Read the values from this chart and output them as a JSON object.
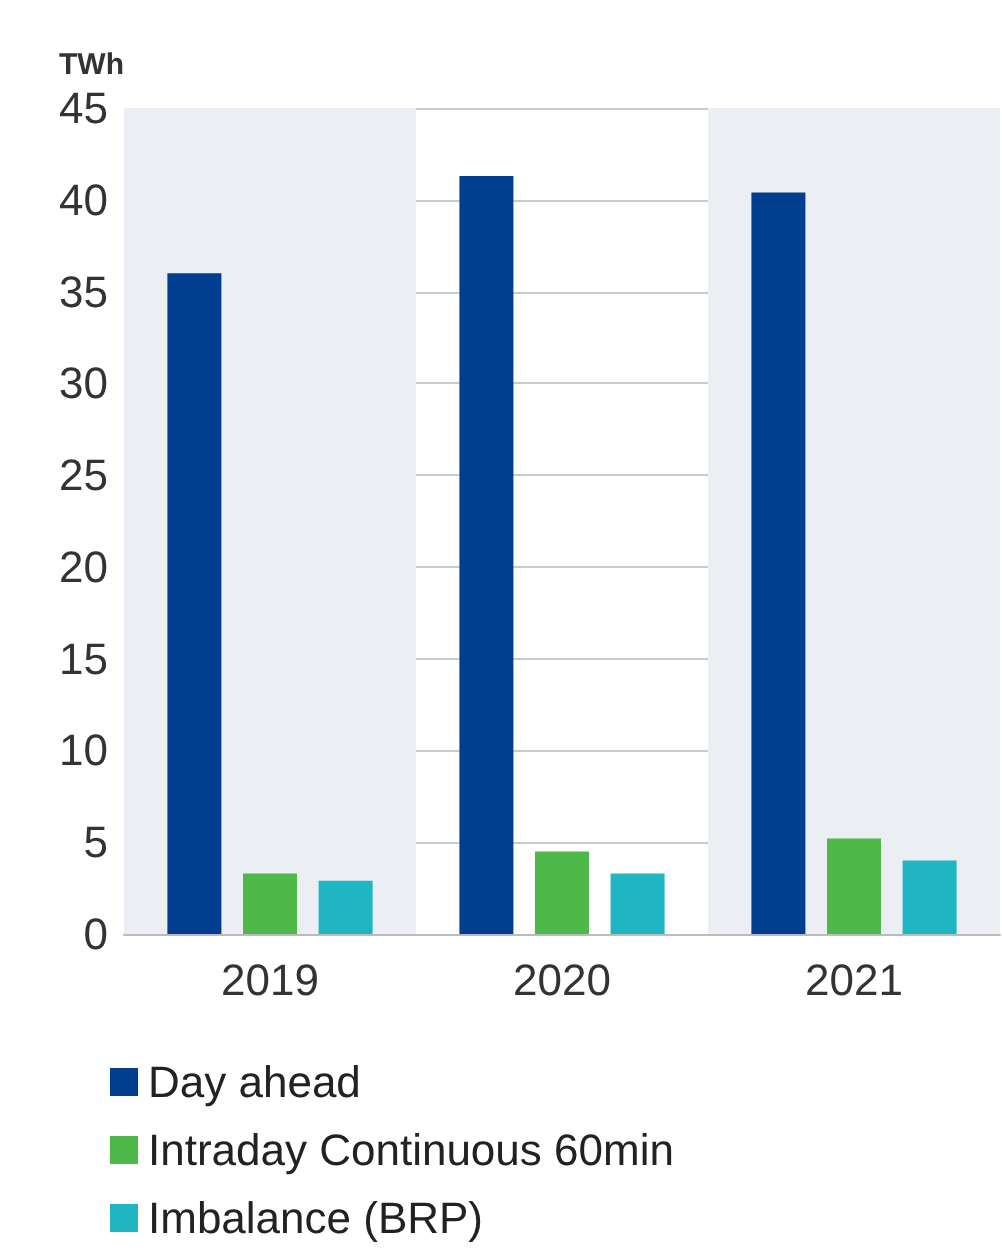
{
  "chart_data": {
    "type": "bar",
    "ylabel": "TWh",
    "categories": [
      "2019",
      "2020",
      "2021"
    ],
    "series": [
      {
        "name": "Day ahead",
        "color": "#003f8f",
        "values": [
          36,
          41.3,
          40.4
        ]
      },
      {
        "name": "Intraday Continuous 60min",
        "color": "#4eb848",
        "values": [
          3.3,
          4.5,
          5.2
        ]
      },
      {
        "name": "Imbalance (BRP)",
        "color": "#1fb5c3",
        "values": [
          2.9,
          3.3,
          4
        ]
      }
    ],
    "ylim": [
      0,
      45
    ],
    "yticks": [
      0,
      5,
      10,
      15,
      20,
      25,
      30,
      35,
      40,
      45
    ],
    "grid": "y",
    "legend": "bottom",
    "bands": [
      {
        "axis": "x",
        "from": "2019",
        "to": "2019",
        "color": "#ebeef2"
      },
      {
        "axis": "x",
        "from": "2021",
        "to": "2021",
        "color": "#ebeef2"
      }
    ]
  }
}
